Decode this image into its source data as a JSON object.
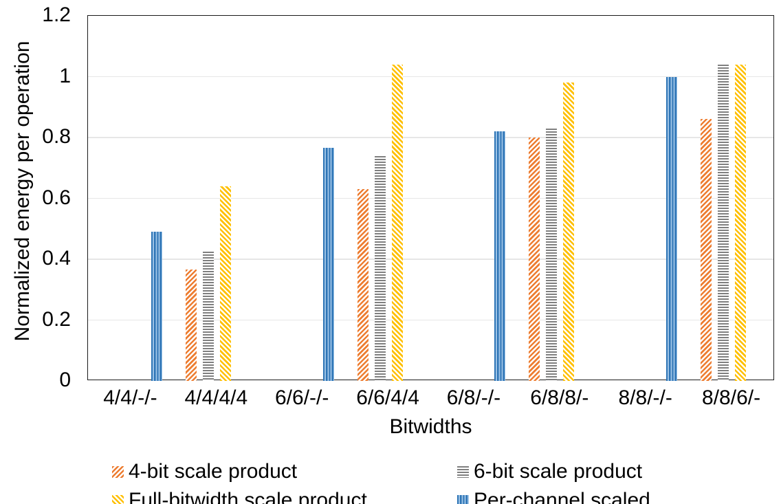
{
  "chart_data": {
    "type": "bar",
    "title": "",
    "xlabel": "Bitwidths",
    "ylabel": "Normalized energy per operation",
    "ylim": [
      0,
      1.2
    ],
    "yticks": [
      0,
      0.2,
      0.4,
      0.6,
      0.8,
      1.0,
      1.2
    ],
    "ytick_labels": [
      "0",
      "0.2",
      "0.4",
      "0.6",
      "0.8",
      "1",
      "1.2"
    ],
    "grid": true,
    "legend_position": "bottom",
    "categories": [
      "4/4/-/-",
      "4/4/4/4",
      "6/6/-/-",
      "6/6/4/4",
      "6/8/-/-",
      "6/8/8/-",
      "8/8/-/-",
      "8/8/6/-"
    ],
    "series": [
      {
        "name": "4-bit scale product",
        "hatch": "diagonal-up",
        "fg": "#ED7D31",
        "bg": "#FFFFFF",
        "values": [
          null,
          0.365,
          null,
          0.63,
          null,
          0.8,
          null,
          0.86
        ]
      },
      {
        "name": "6-bit scale product",
        "hatch": "horizontal",
        "fg": "#7F7F7F",
        "bg": "#FFFFFF",
        "values": [
          null,
          0.425,
          null,
          0.74,
          null,
          0.83,
          null,
          1.04
        ]
      },
      {
        "name": "Full-bitwidth scale product",
        "hatch": "diagonal-down",
        "fg": "#FFC000",
        "bg": "#FFFFFF",
        "values": [
          null,
          0.64,
          null,
          1.04,
          null,
          0.98,
          null,
          1.04
        ]
      },
      {
        "name": "Per-channel scaled",
        "hatch": "vertical",
        "fg": "#2E75B6",
        "bg": "#9DC3E6",
        "values": [
          0.49,
          null,
          0.765,
          null,
          0.82,
          null,
          1.0,
          null
        ]
      }
    ],
    "colors": {
      "axis_line": "#1a1a1a",
      "gridline": "#e6e6e6",
      "text": "#000000"
    }
  }
}
